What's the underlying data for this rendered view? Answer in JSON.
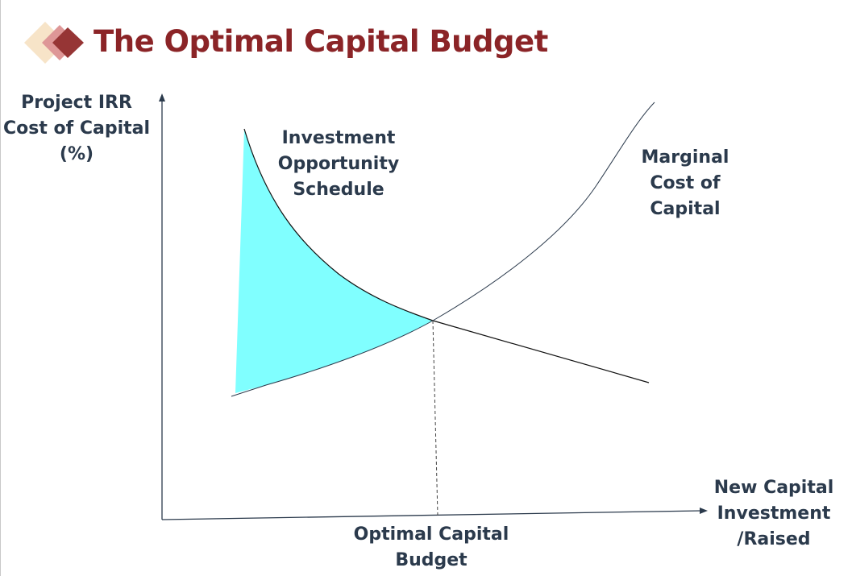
{
  "title": "The Optimal Capital Budget",
  "logo": {
    "icon": "three-diamonds",
    "colors": [
      "#f7e4c8",
      "#de9797",
      "#963535"
    ]
  },
  "y_axis_label": "Project IRR\nCost of Capital\n(%)",
  "x_axis_label": "New Capital\nInvestment\n/Raised",
  "curves": {
    "ios_label": "Investment\nOpportunity\nSchedule",
    "mcc_label": "Marginal\nCost of\nCapital"
  },
  "optimal_label": "Optimal Capital\nBudget",
  "colors": {
    "title": "#8b2427",
    "text": "#2b3a4c",
    "fill": "#80ffff"
  }
}
